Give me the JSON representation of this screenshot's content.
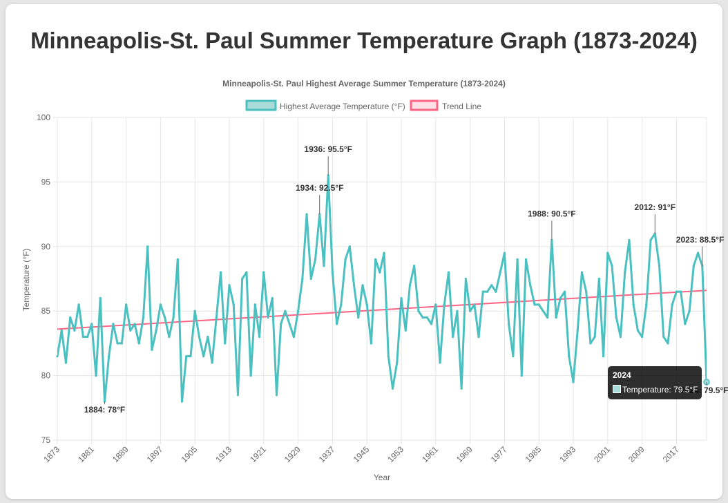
{
  "page": {
    "title": "Minneapolis-St. Paul Summer Temperature Graph (1873-2024)"
  },
  "colors": {
    "series": "#4bc0c0",
    "series_fill": "#a9dcd9",
    "trend": "#ff6384",
    "trend_fill": "#ffe0e6",
    "text": "#666666",
    "grid": "#e5e5e5"
  },
  "chart_data": {
    "type": "line",
    "title": "Minneapolis-St. Paul Highest Average Summer Temperature (1873-2024)",
    "xlabel": "Year",
    "ylabel": "Temperature (°F)",
    "ylim": [
      75,
      100
    ],
    "yticks": [
      "75",
      "80",
      "85",
      "90",
      "95",
      "100"
    ],
    "xticks": [
      "1873",
      "1881",
      "1889",
      "1897",
      "1905",
      "1913",
      "1921",
      "1929",
      "1937",
      "1945",
      "1953",
      "1961",
      "1969",
      "1977",
      "1985",
      "1993",
      "2001",
      "2009",
      "2017"
    ],
    "legend_position": "top",
    "grid": true,
    "series": [
      {
        "name": "Highest Average Temperature (°F)",
        "x_start": 1873,
        "x_end": 2024,
        "values": [
          81.5,
          83.5,
          81,
          84.5,
          83.5,
          85.5,
          83,
          83,
          84,
          80,
          86,
          78,
          81.5,
          84,
          82.5,
          82.5,
          85.5,
          83.5,
          84,
          82.5,
          84.5,
          90,
          82,
          83.5,
          85.5,
          84.5,
          83,
          84.5,
          89,
          78,
          81.5,
          81.5,
          85,
          83,
          81.5,
          83,
          81,
          84.5,
          88,
          82.5,
          87,
          85.5,
          78.5,
          87.5,
          88,
          80,
          85.5,
          83,
          88,
          84.5,
          86,
          78.5,
          84,
          85,
          84,
          83,
          85,
          87.5,
          92.5,
          87.5,
          89,
          92.5,
          88.5,
          95.5,
          88,
          84,
          85.5,
          89,
          90,
          87,
          84.5,
          87,
          85.5,
          82.5,
          89,
          88,
          89.5,
          81.5,
          79,
          81,
          86,
          83.5,
          87,
          88.5,
          85,
          84.5,
          84.5,
          84,
          85.5,
          81,
          85.5,
          88,
          83,
          85,
          79,
          87.5,
          85,
          85.5,
          83,
          86.5,
          86.5,
          87,
          86.5,
          88,
          89.5,
          84,
          81.5,
          89,
          80,
          89,
          87,
          85.5,
          85.5,
          85,
          84.5,
          90.5,
          84.5,
          86,
          86.5,
          81.5,
          79.5,
          83.5,
          88,
          86.5,
          82.5,
          83,
          87.5,
          81.5,
          89.5,
          88.5,
          84.5,
          83,
          88,
          90.5,
          85.5,
          83.5,
          83,
          85.5,
          90.5,
          91,
          88.5,
          83,
          82.5,
          85.5,
          86.5,
          86.5,
          84,
          85,
          88.5,
          89.5,
          88.5,
          79.5
        ]
      },
      {
        "name": "Trend Line",
        "type": "linear-trend",
        "start": [
          1873,
          83.6
        ],
        "end": [
          2024,
          86.6
        ]
      }
    ],
    "annotations": [
      {
        "label": "1884: 78°F",
        "year": 1884,
        "value": 78
      },
      {
        "label": "1934: 92.5°F",
        "year": 1934,
        "value": 92.5
      },
      {
        "label": "1936: 95.5°F",
        "year": 1936,
        "value": 95.5
      },
      {
        "label": "1988: 90.5°F",
        "year": 1988,
        "value": 90.5
      },
      {
        "label": "2012: 91°F",
        "year": 2012,
        "value": 91
      },
      {
        "label": "2023: 88.5°F",
        "year": 2023,
        "value": 88.5
      },
      {
        "label": "2024: 79.5°F",
        "year": 2024,
        "value": 79.5
      }
    ],
    "tooltip": {
      "title": "2024",
      "label": "Temperature: 79.5°F"
    }
  }
}
